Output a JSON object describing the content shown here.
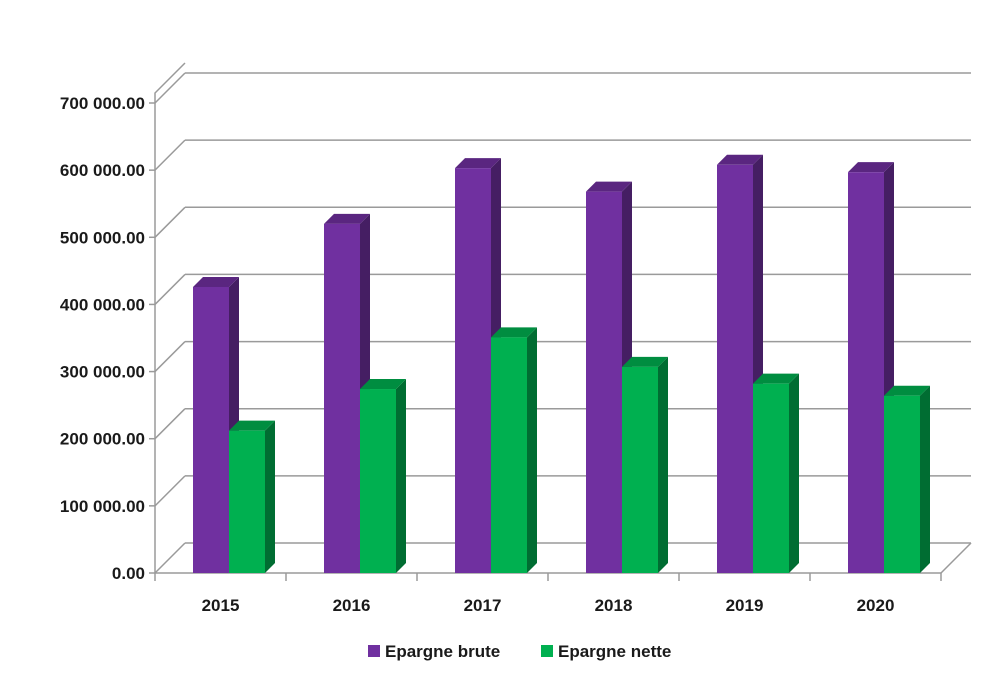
{
  "chart_data": {
    "type": "bar",
    "categories": [
      "2015",
      "2016",
      "2017",
      "2018",
      "2019",
      "2020"
    ],
    "series": [
      {
        "name": "Epargne brute",
        "values": [
          426000,
          520000,
          603000,
          568000,
          608000,
          597000
        ],
        "color": "#7030A0"
      },
      {
        "name": "Epargne nette",
        "values": [
          212000,
          274000,
          351000,
          307000,
          282000,
          264000
        ],
        "color": "#00B050"
      }
    ],
    "ylim": [
      0,
      700000
    ],
    "yticks": [
      "0.00",
      "100 000.00",
      "200 000.00",
      "300 000.00",
      "400 000.00",
      "500 000.00",
      "600 000.00",
      "700 000.00"
    ],
    "grid": true,
    "legend_position": "bottom",
    "style": "3d-clustered-column"
  }
}
